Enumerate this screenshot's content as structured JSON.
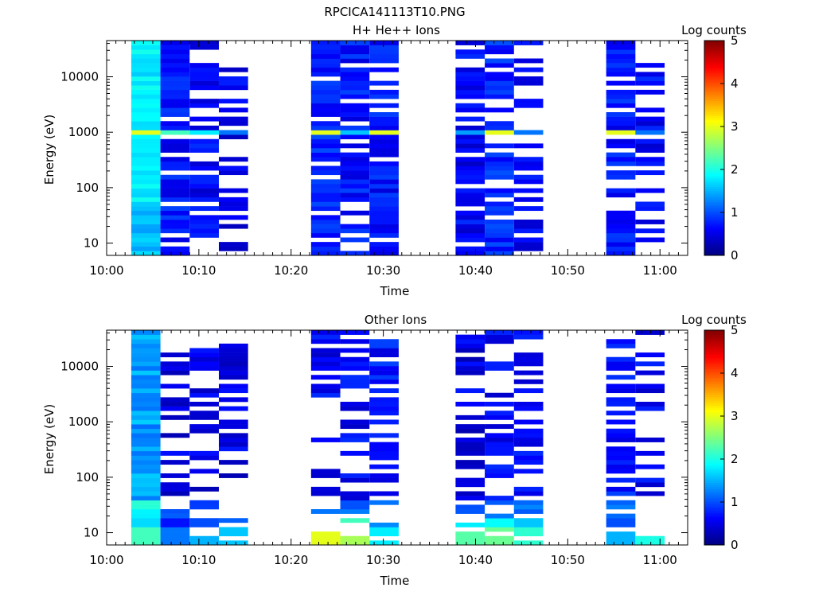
{
  "figure_title": "RPCICA141113T10.PNG",
  "chart_data": [
    {
      "type": "heatmap",
      "title": "H+ He++ Ions",
      "xlabel": "Time",
      "ylabel": "Energy (eV)",
      "colorbar_label": "Log counts",
      "y_scale": "log",
      "xlim": [
        "10:00",
        "11:03"
      ],
      "ylim": [
        6,
        45000
      ],
      "x_ticks": [
        "10:00",
        "10:10",
        "10:20",
        "10:30",
        "10:40",
        "10:50",
        "11:00"
      ],
      "y_ticks": [
        10,
        100,
        1000,
        10000
      ],
      "y_tick_labels": [
        "10",
        "100",
        "1000",
        "10000"
      ],
      "colorbar_range": [
        0,
        5
      ],
      "colorbar_ticks": [
        "0",
        "1",
        "2",
        "3",
        "4",
        "5"
      ],
      "scans": [
        {
          "start": "10:02:40",
          "end": "10:05:50",
          "level": 1.8,
          "peak": 3.0,
          "fill": 1.0
        },
        {
          "start": "10:05:50",
          "end": "10:09:00",
          "level": 0.7,
          "peak": 2.2,
          "fill": 0.72
        },
        {
          "start": "10:09:00",
          "end": "10:12:10",
          "level": 0.6,
          "peak": 1.8,
          "fill": 0.62
        },
        {
          "start": "10:12:10",
          "end": "10:15:20",
          "level": 0.55,
          "peak": 1.2,
          "fill": 0.55
        },
        {
          "start": "10:22:10",
          "end": "10:25:20",
          "level": 0.8,
          "peak": 3.0,
          "fill": 0.82
        },
        {
          "start": "10:25:20",
          "end": "10:28:30",
          "level": 0.7,
          "peak": 1.6,
          "fill": 0.72
        },
        {
          "start": "10:28:30",
          "end": "10:31:40",
          "level": 0.7,
          "peak": 3.0,
          "fill": 0.74
        },
        {
          "start": "10:37:50",
          "end": "10:41:00",
          "level": 0.6,
          "peak": 1.4,
          "fill": 0.75
        },
        {
          "start": "10:41:00",
          "end": "10:44:10",
          "level": 0.8,
          "peak": 3.0,
          "fill": 0.82
        },
        {
          "start": "10:44:10",
          "end": "10:47:20",
          "level": 0.6,
          "peak": 1.2,
          "fill": 0.62
        },
        {
          "start": "10:54:10",
          "end": "10:57:20",
          "level": 0.7,
          "peak": 3.0,
          "fill": 0.8
        },
        {
          "start": "10:57:20",
          "end": "11:00:30",
          "level": 0.6,
          "peak": 1.2,
          "fill": 0.6
        }
      ]
    },
    {
      "type": "heatmap",
      "title": "Other Ions",
      "xlabel": "Time",
      "ylabel": "Energy (eV)",
      "colorbar_label": "Log counts",
      "y_scale": "log",
      "xlim": [
        "10:00",
        "11:03"
      ],
      "ylim": [
        6,
        45000
      ],
      "x_ticks": [
        "10:00",
        "10:10",
        "10:20",
        "10:30",
        "10:40",
        "10:50",
        "11:00"
      ],
      "y_ticks": [
        10,
        100,
        1000,
        10000
      ],
      "y_tick_labels": [
        "10",
        "100",
        "1000",
        "10000"
      ],
      "colorbar_range": [
        0,
        5
      ],
      "colorbar_ticks": [
        "0",
        "1",
        "2",
        "3",
        "4",
        "5"
      ],
      "scans": [
        {
          "start": "10:02:40",
          "end": "10:05:50",
          "level": 1.4,
          "low": 2.2,
          "fill": 1.0
        },
        {
          "start": "10:05:50",
          "end": "10:09:00",
          "level": 0.5,
          "low": 1.2,
          "fill": 0.55
        },
        {
          "start": "10:09:00",
          "end": "10:12:10",
          "level": 0.5,
          "low": 1.5,
          "fill": 0.5
        },
        {
          "start": "10:12:10",
          "end": "10:15:20",
          "level": 0.5,
          "low": 1.6,
          "fill": 0.5
        },
        {
          "start": "10:22:10",
          "end": "10:25:20",
          "level": 0.6,
          "low": 3.0,
          "fill": 0.5
        },
        {
          "start": "10:25:20",
          "end": "10:28:30",
          "level": 0.6,
          "low": 2.7,
          "fill": 0.55
        },
        {
          "start": "10:28:30",
          "end": "10:31:40",
          "level": 0.7,
          "low": 1.8,
          "fill": 0.6
        },
        {
          "start": "10:37:50",
          "end": "10:41:00",
          "level": 0.5,
          "low": 2.3,
          "fill": 0.5
        },
        {
          "start": "10:41:00",
          "end": "10:44:10",
          "level": 0.6,
          "low": 2.4,
          "fill": 0.6
        },
        {
          "start": "10:44:10",
          "end": "10:47:20",
          "level": 0.6,
          "low": 2.1,
          "fill": 0.5
        },
        {
          "start": "10:54:10",
          "end": "10:57:20",
          "level": 0.7,
          "low": 1.5,
          "fill": 0.55
        },
        {
          "start": "10:57:20",
          "end": "11:00:30",
          "level": 0.6,
          "low": 2.0,
          "fill": 0.45
        }
      ]
    }
  ]
}
